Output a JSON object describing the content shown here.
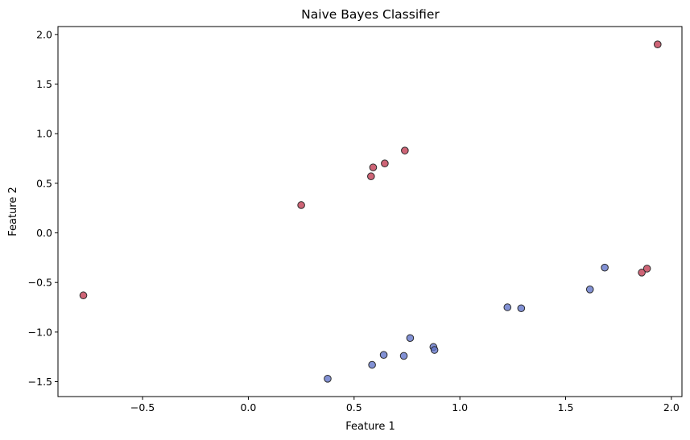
{
  "chart_data": {
    "type": "scatter",
    "title": "Naive Bayes Classifier",
    "xlabel": "Feature 1",
    "ylabel": "Feature 2",
    "xlim": [
      -0.9,
      2.05
    ],
    "ylim": [
      -1.65,
      2.08
    ],
    "x_ticks": [
      -0.5,
      0.0,
      0.5,
      1.0,
      1.5,
      2.0
    ],
    "x_tick_labels": [
      "−0.5",
      "0.0",
      "0.5",
      "1.0",
      "1.5",
      "2.0"
    ],
    "y_ticks": [
      -1.5,
      -1.0,
      -0.5,
      0.0,
      0.5,
      1.0,
      1.5,
      2.0
    ],
    "y_tick_labels": [
      "−1.5",
      "−1.0",
      "−0.5",
      "0.0",
      "0.5",
      "1.0",
      "1.5",
      "2.0"
    ],
    "grid": false,
    "legend": "none",
    "series": [
      {
        "color": "#c0394f",
        "points": [
          {
            "x": -0.78,
            "y": -0.63
          },
          {
            "x": 0.25,
            "y": 0.28
          },
          {
            "x": 0.58,
            "y": 0.57
          },
          {
            "x": 0.59,
            "y": 0.66
          },
          {
            "x": 0.645,
            "y": 0.7
          },
          {
            "x": 0.74,
            "y": 0.83
          },
          {
            "x": 1.86,
            "y": -0.4
          },
          {
            "x": 1.885,
            "y": -0.36
          },
          {
            "x": 1.935,
            "y": 1.9
          }
        ]
      },
      {
        "color": "#5f72c8",
        "points": [
          {
            "x": 0.375,
            "y": -1.47
          },
          {
            "x": 0.585,
            "y": -1.33
          },
          {
            "x": 0.64,
            "y": -1.23
          },
          {
            "x": 0.735,
            "y": -1.24
          },
          {
            "x": 0.765,
            "y": -1.06
          },
          {
            "x": 0.875,
            "y": -1.15
          },
          {
            "x": 0.88,
            "y": -1.18
          },
          {
            "x": 1.225,
            "y": -0.75
          },
          {
            "x": 1.29,
            "y": -0.76
          },
          {
            "x": 1.615,
            "y": -0.57
          },
          {
            "x": 1.685,
            "y": -0.35
          }
        ]
      }
    ]
  }
}
